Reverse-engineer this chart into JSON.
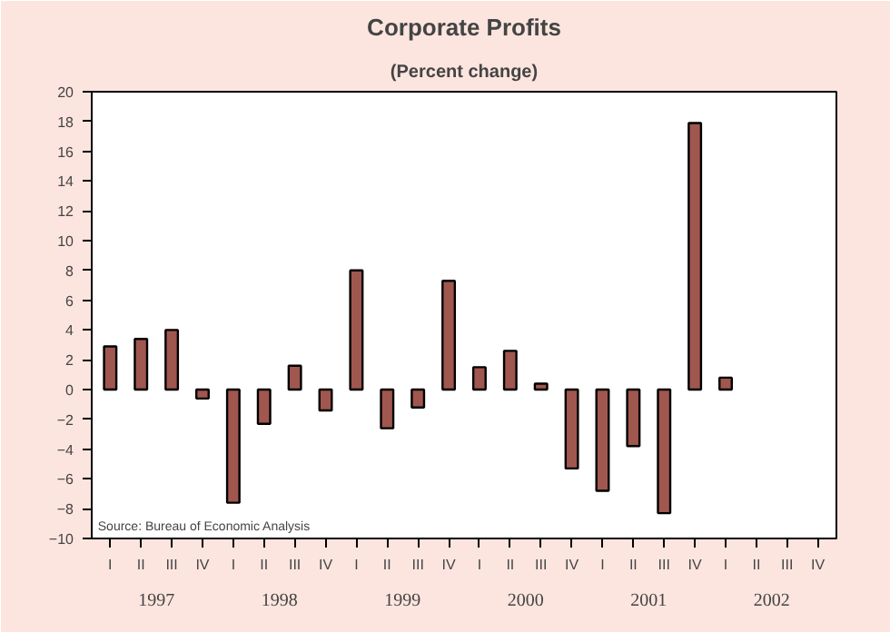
{
  "chart_data": {
    "type": "bar",
    "title": "Corporate Profits",
    "subtitle": "(Percent change)",
    "categories": [
      "I",
      "II",
      "III",
      "IV",
      "I",
      "II",
      "III",
      "IV",
      "I",
      "II",
      "III",
      "IV",
      "I",
      "II",
      "III",
      "IV",
      "I",
      "II",
      "III",
      "IV",
      "I",
      "II",
      "III",
      "IV"
    ],
    "values": [
      2.9,
      3.4,
      4.0,
      -0.6,
      -7.6,
      -2.3,
      1.6,
      -1.4,
      8.0,
      -2.6,
      -1.2,
      7.3,
      1.5,
      2.6,
      0.4,
      -5.3,
      -6.8,
      -3.8,
      -8.3,
      17.9,
      0.8,
      null,
      null,
      null
    ],
    "color": "#a0574f",
    "ylim": [
      -10,
      20
    ],
    "yticks": [
      -10,
      -8,
      -6,
      -4,
      -2,
      0,
      2,
      4,
      6,
      8,
      10,
      12,
      14,
      16,
      18,
      20
    ],
    "grid": false,
    "annotations": [
      "Source: Bureau of Economic Analysis",
      "1997",
      "1998",
      "1999",
      "2000",
      "2001",
      "2002"
    ]
  }
}
